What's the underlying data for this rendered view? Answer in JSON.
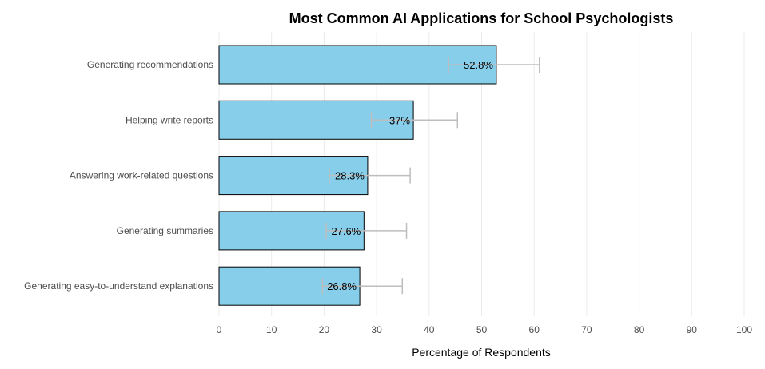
{
  "chart_data": {
    "type": "bar",
    "orientation": "horizontal",
    "title": "Most Common AI Applications for School Psychologists",
    "xlabel": "Percentage of Respondents",
    "ylabel": "",
    "xlim": [
      0,
      100
    ],
    "xticks": [
      0,
      10,
      20,
      30,
      40,
      50,
      60,
      70,
      80,
      90,
      100
    ],
    "grid": true,
    "categories": [
      "Generating recommendations",
      "Helping write reports",
      "Answering work-related questions",
      "Generating summaries",
      "Generating easy-to-understand explanations"
    ],
    "values": [
      52.8,
      37,
      28.3,
      27.6,
      26.8
    ],
    "data_labels": [
      "52.8%",
      "37%",
      "28.3%",
      "27.6%",
      "26.8%"
    ],
    "error_low": [
      43.7,
      29.0,
      21.0,
      20.4,
      19.7
    ],
    "error_high": [
      61.0,
      45.4,
      36.4,
      35.7,
      34.9
    ],
    "colors": {
      "bar": "#87CEEB",
      "bar_edge": "#000000",
      "error": "#BEBEBE",
      "grid": "#EBEBEB"
    }
  }
}
